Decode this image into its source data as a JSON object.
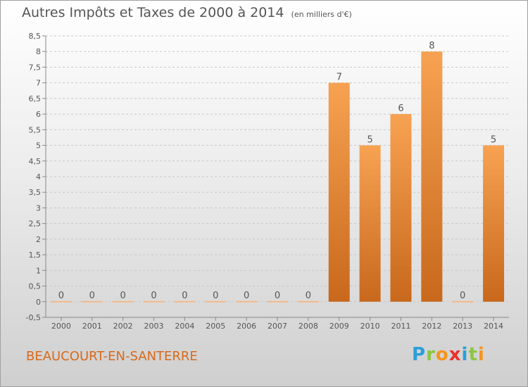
{
  "title": "Autres Impôts et Taxes de 2000 à 2014",
  "title_unit": "(en milliers d'€)",
  "commune": "BEAUCOURT-EN-SANTERRE",
  "logo": {
    "letters": [
      "P",
      "r",
      "o",
      "x",
      "i",
      "t",
      "i"
    ],
    "colors": [
      "#2aa0d8",
      "#8cc63f",
      "#f7941d",
      "#e8312a",
      "#2aa0d8",
      "#8cc63f",
      "#f7941d"
    ]
  },
  "chart_data": {
    "type": "bar",
    "categories": [
      "2000",
      "2001",
      "2002",
      "2003",
      "2004",
      "2005",
      "2006",
      "2007",
      "2008",
      "2009",
      "2010",
      "2011",
      "2012",
      "2013",
      "2014"
    ],
    "values": [
      0,
      0,
      0,
      0,
      0,
      0,
      0,
      0,
      0,
      7,
      5,
      6,
      8,
      0,
      5
    ],
    "data_labels": [
      "0",
      "0",
      "0",
      "0",
      "0",
      "0",
      "0",
      "0",
      "0",
      "7",
      "5",
      "6",
      "8",
      "0",
      "5"
    ],
    "ylim": [
      -0.5,
      8.5
    ],
    "yticks": [
      "-0,5",
      "0",
      "0,5",
      "1",
      "1,5",
      "2",
      "2,5",
      "3",
      "3,5",
      "4",
      "4,5",
      "5",
      "5,5",
      "6",
      "6,5",
      "7",
      "7,5",
      "8",
      "8,5"
    ],
    "ytick_values": [
      -0.5,
      0,
      0.5,
      1,
      1.5,
      2,
      2.5,
      3,
      3.5,
      4,
      4.5,
      5,
      5.5,
      6,
      6.5,
      7,
      7.5,
      8,
      8.5
    ],
    "grid": "horizontal-dashed",
    "colors": {
      "bar_top": "#f7a252",
      "bar_bottom": "#c8681c",
      "zero_bar": "#f5b98a"
    }
  }
}
